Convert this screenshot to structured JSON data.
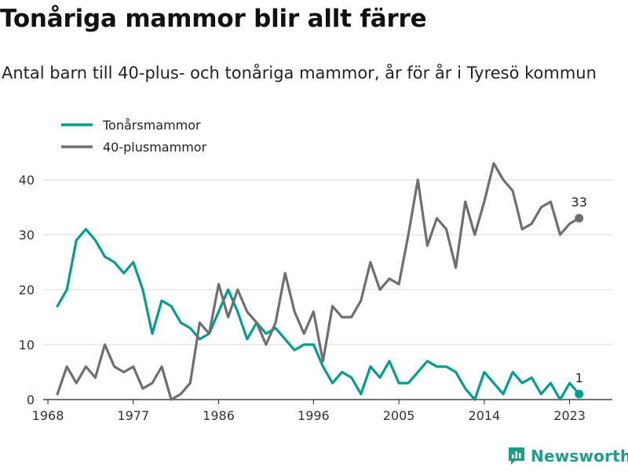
{
  "title": "Tonåriga mammor blir allt färre",
  "subtitle": "Antal barn till 40-plus- och tonåriga mammor, år för år i Tyresö kommun",
  "brand": "Newsworthy",
  "colors": {
    "teen": "#009e8f",
    "forty": "#6e6e73",
    "grid": "#d9d9d9",
    "brand": "#1f9d87"
  },
  "chart_data": {
    "type": "line",
    "x": [
      1969,
      1970,
      1971,
      1972,
      1973,
      1974,
      1975,
      1976,
      1977,
      1978,
      1979,
      1980,
      1981,
      1982,
      1983,
      1984,
      1985,
      1986,
      1987,
      1988,
      1989,
      1990,
      1991,
      1992,
      1993,
      1994,
      1995,
      1996,
      1997,
      1998,
      1999,
      2000,
      2001,
      2002,
      2003,
      2004,
      2005,
      2006,
      2007,
      2008,
      2009,
      2010,
      2011,
      2012,
      2013,
      2014,
      2015,
      2016,
      2017,
      2018,
      2019,
      2020,
      2021,
      2022,
      2023,
      2024
    ],
    "xticks": [
      1968,
      1977,
      1986,
      1996,
      2005,
      2014,
      2023
    ],
    "yticks": [
      0,
      10,
      20,
      30,
      40
    ],
    "xlim": [
      1967.5,
      2027.5
    ],
    "ylim": [
      0,
      47
    ],
    "grid": true,
    "legend_position": "top-left",
    "series": [
      {
        "name": "Tonårsmammor",
        "key": "teen",
        "values": [
          17,
          20,
          29,
          31,
          29,
          26,
          25,
          23,
          25,
          20,
          12,
          18,
          17,
          14,
          13,
          11,
          12,
          16,
          20,
          16,
          11,
          14,
          12,
          13,
          11,
          9,
          10,
          10,
          6,
          3,
          5,
          4,
          1,
          6,
          4,
          7,
          3,
          3,
          5,
          7,
          6,
          6,
          5,
          2,
          0,
          5,
          3,
          1,
          5,
          3,
          4,
          1,
          3,
          0,
          3,
          1
        ],
        "end_label": "1"
      },
      {
        "name": "40-plusmammor",
        "key": "forty",
        "values": [
          1,
          6,
          3,
          6,
          4,
          10,
          6,
          5,
          6,
          2,
          3,
          6,
          0,
          1,
          3,
          14,
          12,
          21,
          15,
          20,
          16,
          14,
          10,
          14,
          23,
          16,
          12,
          16,
          7,
          17,
          15,
          15,
          18,
          25,
          20,
          22,
          21,
          30,
          40,
          28,
          33,
          31,
          24,
          36,
          30,
          36,
          43,
          40,
          38,
          31,
          32,
          35,
          36,
          30,
          32,
          33
        ],
        "end_label": "33"
      }
    ]
  }
}
